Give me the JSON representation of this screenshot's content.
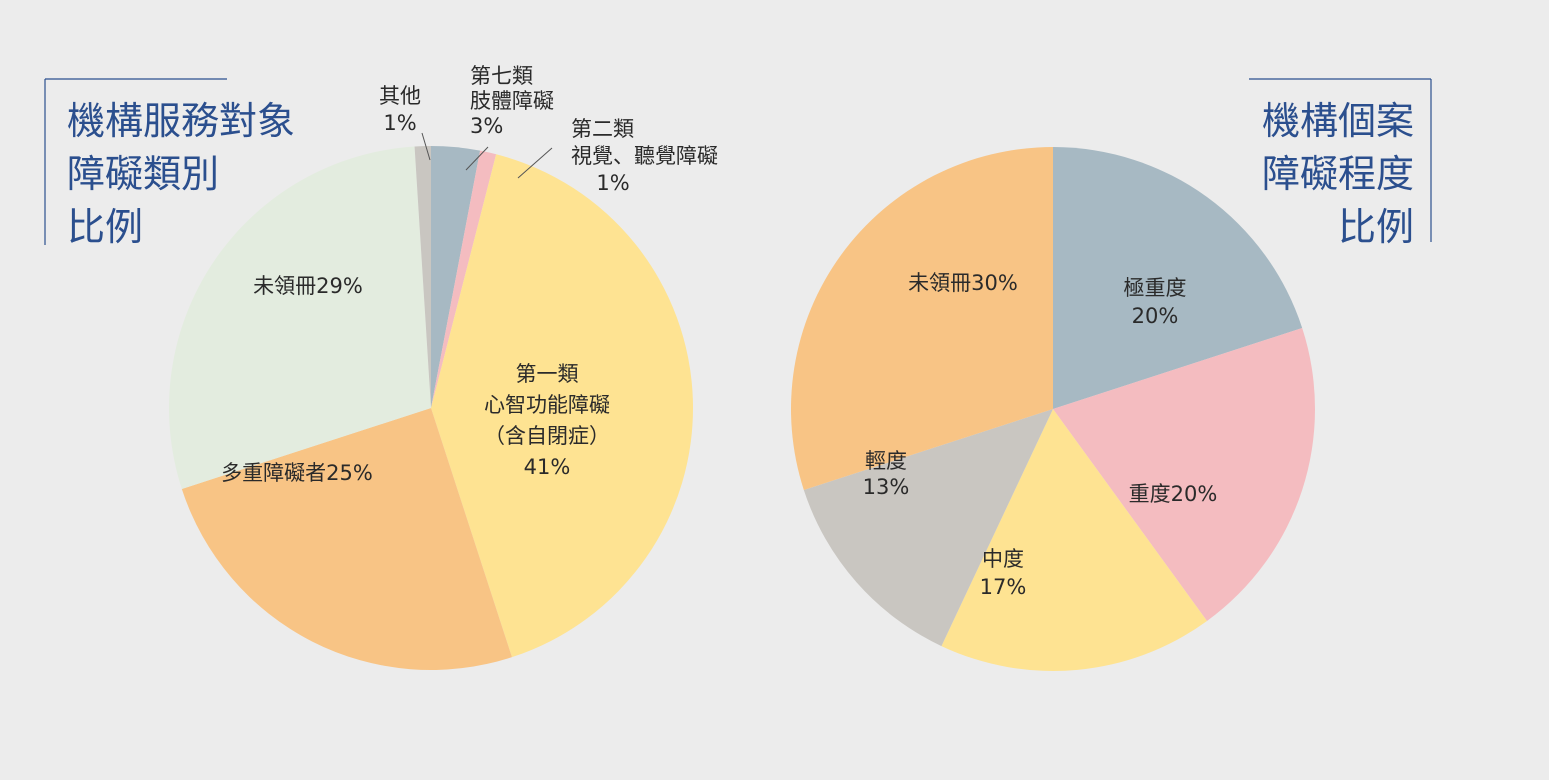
{
  "colors": {
    "background": "#ececec",
    "title": "#2b4f8e",
    "label": "#2a2a2a"
  },
  "left_title": [
    "機構服務對象",
    "障礙類別",
    "比例"
  ],
  "right_title": [
    "機構個案",
    "障礙程度",
    "比例"
  ],
  "chart_data": [
    {
      "type": "pie",
      "title": "機構服務對象障礙類別比例",
      "slices": [
        {
          "label": [
            "第七類",
            "肢體障礙",
            "3%"
          ],
          "value": 3,
          "color": "#a7b9c3"
        },
        {
          "label": [
            "第二類",
            "視覺、聽覺障礙",
            "1%"
          ],
          "value": 1,
          "color": "#f4bcc0"
        },
        {
          "label": [
            "第一類",
            "心智功能障礙",
            "（含自閉症）",
            "41%"
          ],
          "value": 41,
          "color": "#fee392"
        },
        {
          "label": [
            "多重障礙者25%"
          ],
          "value": 25,
          "color": "#f8c485"
        },
        {
          "label": [
            "未領冊29%"
          ],
          "value": 29,
          "color": "#e3ecdf"
        },
        {
          "label": [
            "其他",
            "1%"
          ],
          "value": 1,
          "color": "#c9c6c1"
        }
      ]
    },
    {
      "type": "pie",
      "title": "機構個案障礙程度比例",
      "slices": [
        {
          "label": [
            "極重度",
            "20%"
          ],
          "value": 20,
          "color": "#a7b9c3"
        },
        {
          "label": [
            "重度20%"
          ],
          "value": 20,
          "color": "#f4bcc0"
        },
        {
          "label": [
            "中度",
            "17%"
          ],
          "value": 17,
          "color": "#fee392"
        },
        {
          "label": [
            "輕度",
            "13%"
          ],
          "value": 13,
          "color": "#c9c6c1"
        },
        {
          "label": [
            "未領冊30%"
          ],
          "value": 30,
          "color": "#f8c485"
        }
      ]
    }
  ]
}
